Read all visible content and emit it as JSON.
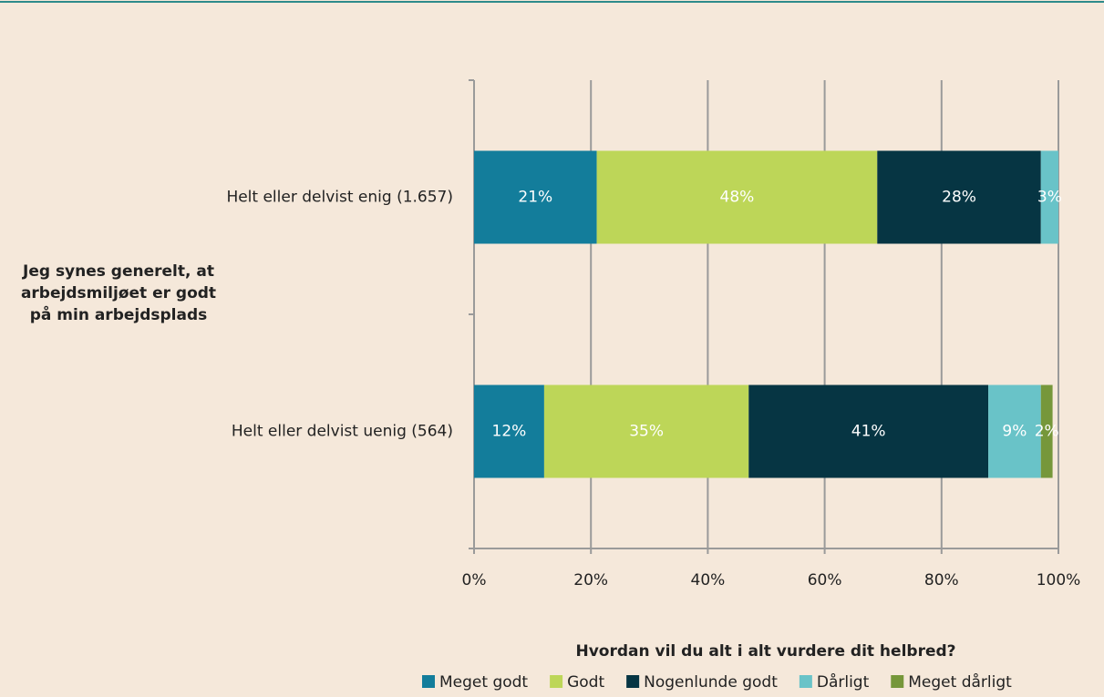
{
  "chart_data": {
    "type": "stacked_barh",
    "ylabel": [
      "Jeg synes generelt, at",
      "arbejdsmiljøet er godt",
      "på min arbejdsplads"
    ],
    "legend_title": "Hvordan vil du alt i alt vurdere dit helbred?",
    "legend": "bottom",
    "grid": true,
    "categories": [
      "Helt eller delvist enig (1.657)",
      "Helt eller delvist uenig (564)"
    ],
    "series": [
      {
        "name": "Meget godt",
        "color": "#137d9b",
        "values": [
          21,
          12
        ],
        "value_labels": [
          "21%",
          "12%"
        ]
      },
      {
        "name": "Godt",
        "color": "#bdd658",
        "values": [
          48,
          35
        ],
        "value_labels": [
          "48%",
          "35%"
        ]
      },
      {
        "name": "Nogenlunde godt",
        "color": "#063543",
        "values": [
          28,
          41
        ],
        "value_labels": [
          "28%",
          "41%"
        ]
      },
      {
        "name": "Dårligt",
        "color": "#69c3c8",
        "values": [
          3,
          9
        ],
        "value_labels": [
          "3%",
          "9%"
        ]
      },
      {
        "name": "Meget dårligt",
        "color": "#76973a",
        "values": [
          0,
          2
        ],
        "value_labels": [
          null,
          "2%"
        ]
      }
    ],
    "xlim": [
      0,
      100
    ],
    "xticks": [
      {
        "value": 0,
        "label": "0%"
      },
      {
        "value": 20,
        "label": "20%"
      },
      {
        "value": 40,
        "label": "40%"
      },
      {
        "value": 60,
        "label": "60%"
      },
      {
        "value": 80,
        "label": "80%"
      },
      {
        "value": 100,
        "label": "100%"
      }
    ]
  }
}
